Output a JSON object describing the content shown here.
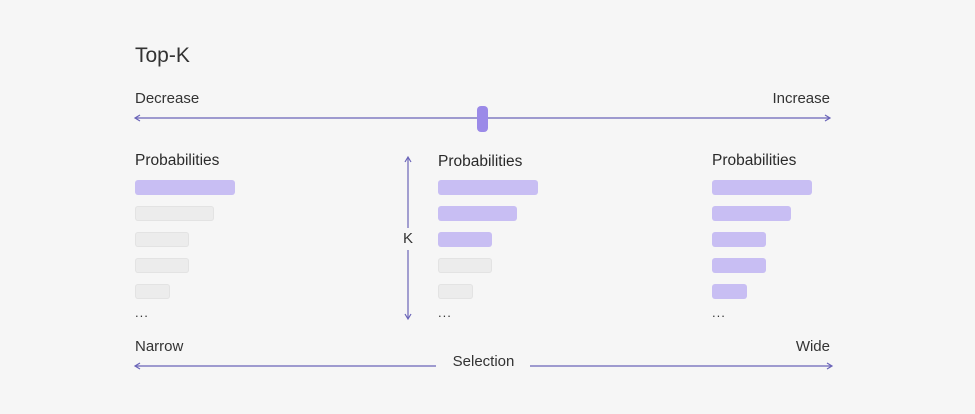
{
  "title": "Top-K",
  "slider": {
    "left_label": "Decrease",
    "right_label": "Increase",
    "value": 0.5
  },
  "k_label": "K",
  "columns": [
    {
      "header": "Probabilities",
      "bars": [
        {
          "length": 100,
          "selected": true
        },
        {
          "length": 79,
          "selected": false
        },
        {
          "length": 54,
          "selected": false
        },
        {
          "length": 54,
          "selected": false
        },
        {
          "length": 35,
          "selected": false
        }
      ],
      "ellipsis": "..."
    },
    {
      "header": "Probabilities",
      "bars": [
        {
          "length": 100,
          "selected": true
        },
        {
          "length": 79,
          "selected": true
        },
        {
          "length": 54,
          "selected": true
        },
        {
          "length": 54,
          "selected": false
        },
        {
          "length": 35,
          "selected": false
        }
      ],
      "ellipsis": "..."
    },
    {
      "header": "Probabilities",
      "bars": [
        {
          "length": 100,
          "selected": true
        },
        {
          "length": 79,
          "selected": true
        },
        {
          "length": 54,
          "selected": true
        },
        {
          "length": 54,
          "selected": true
        },
        {
          "length": 35,
          "selected": true
        }
      ],
      "ellipsis": "..."
    }
  ],
  "selection": {
    "left_label": "Narrow",
    "center_label": "Selection",
    "right_label": "Wide"
  },
  "colors": {
    "accent": "#9b8ae8",
    "selected_bar": "#c8bef3",
    "unselected_bar": "#ececec",
    "unselected_border": "#e3e3e3",
    "line": "#6a64b8"
  }
}
